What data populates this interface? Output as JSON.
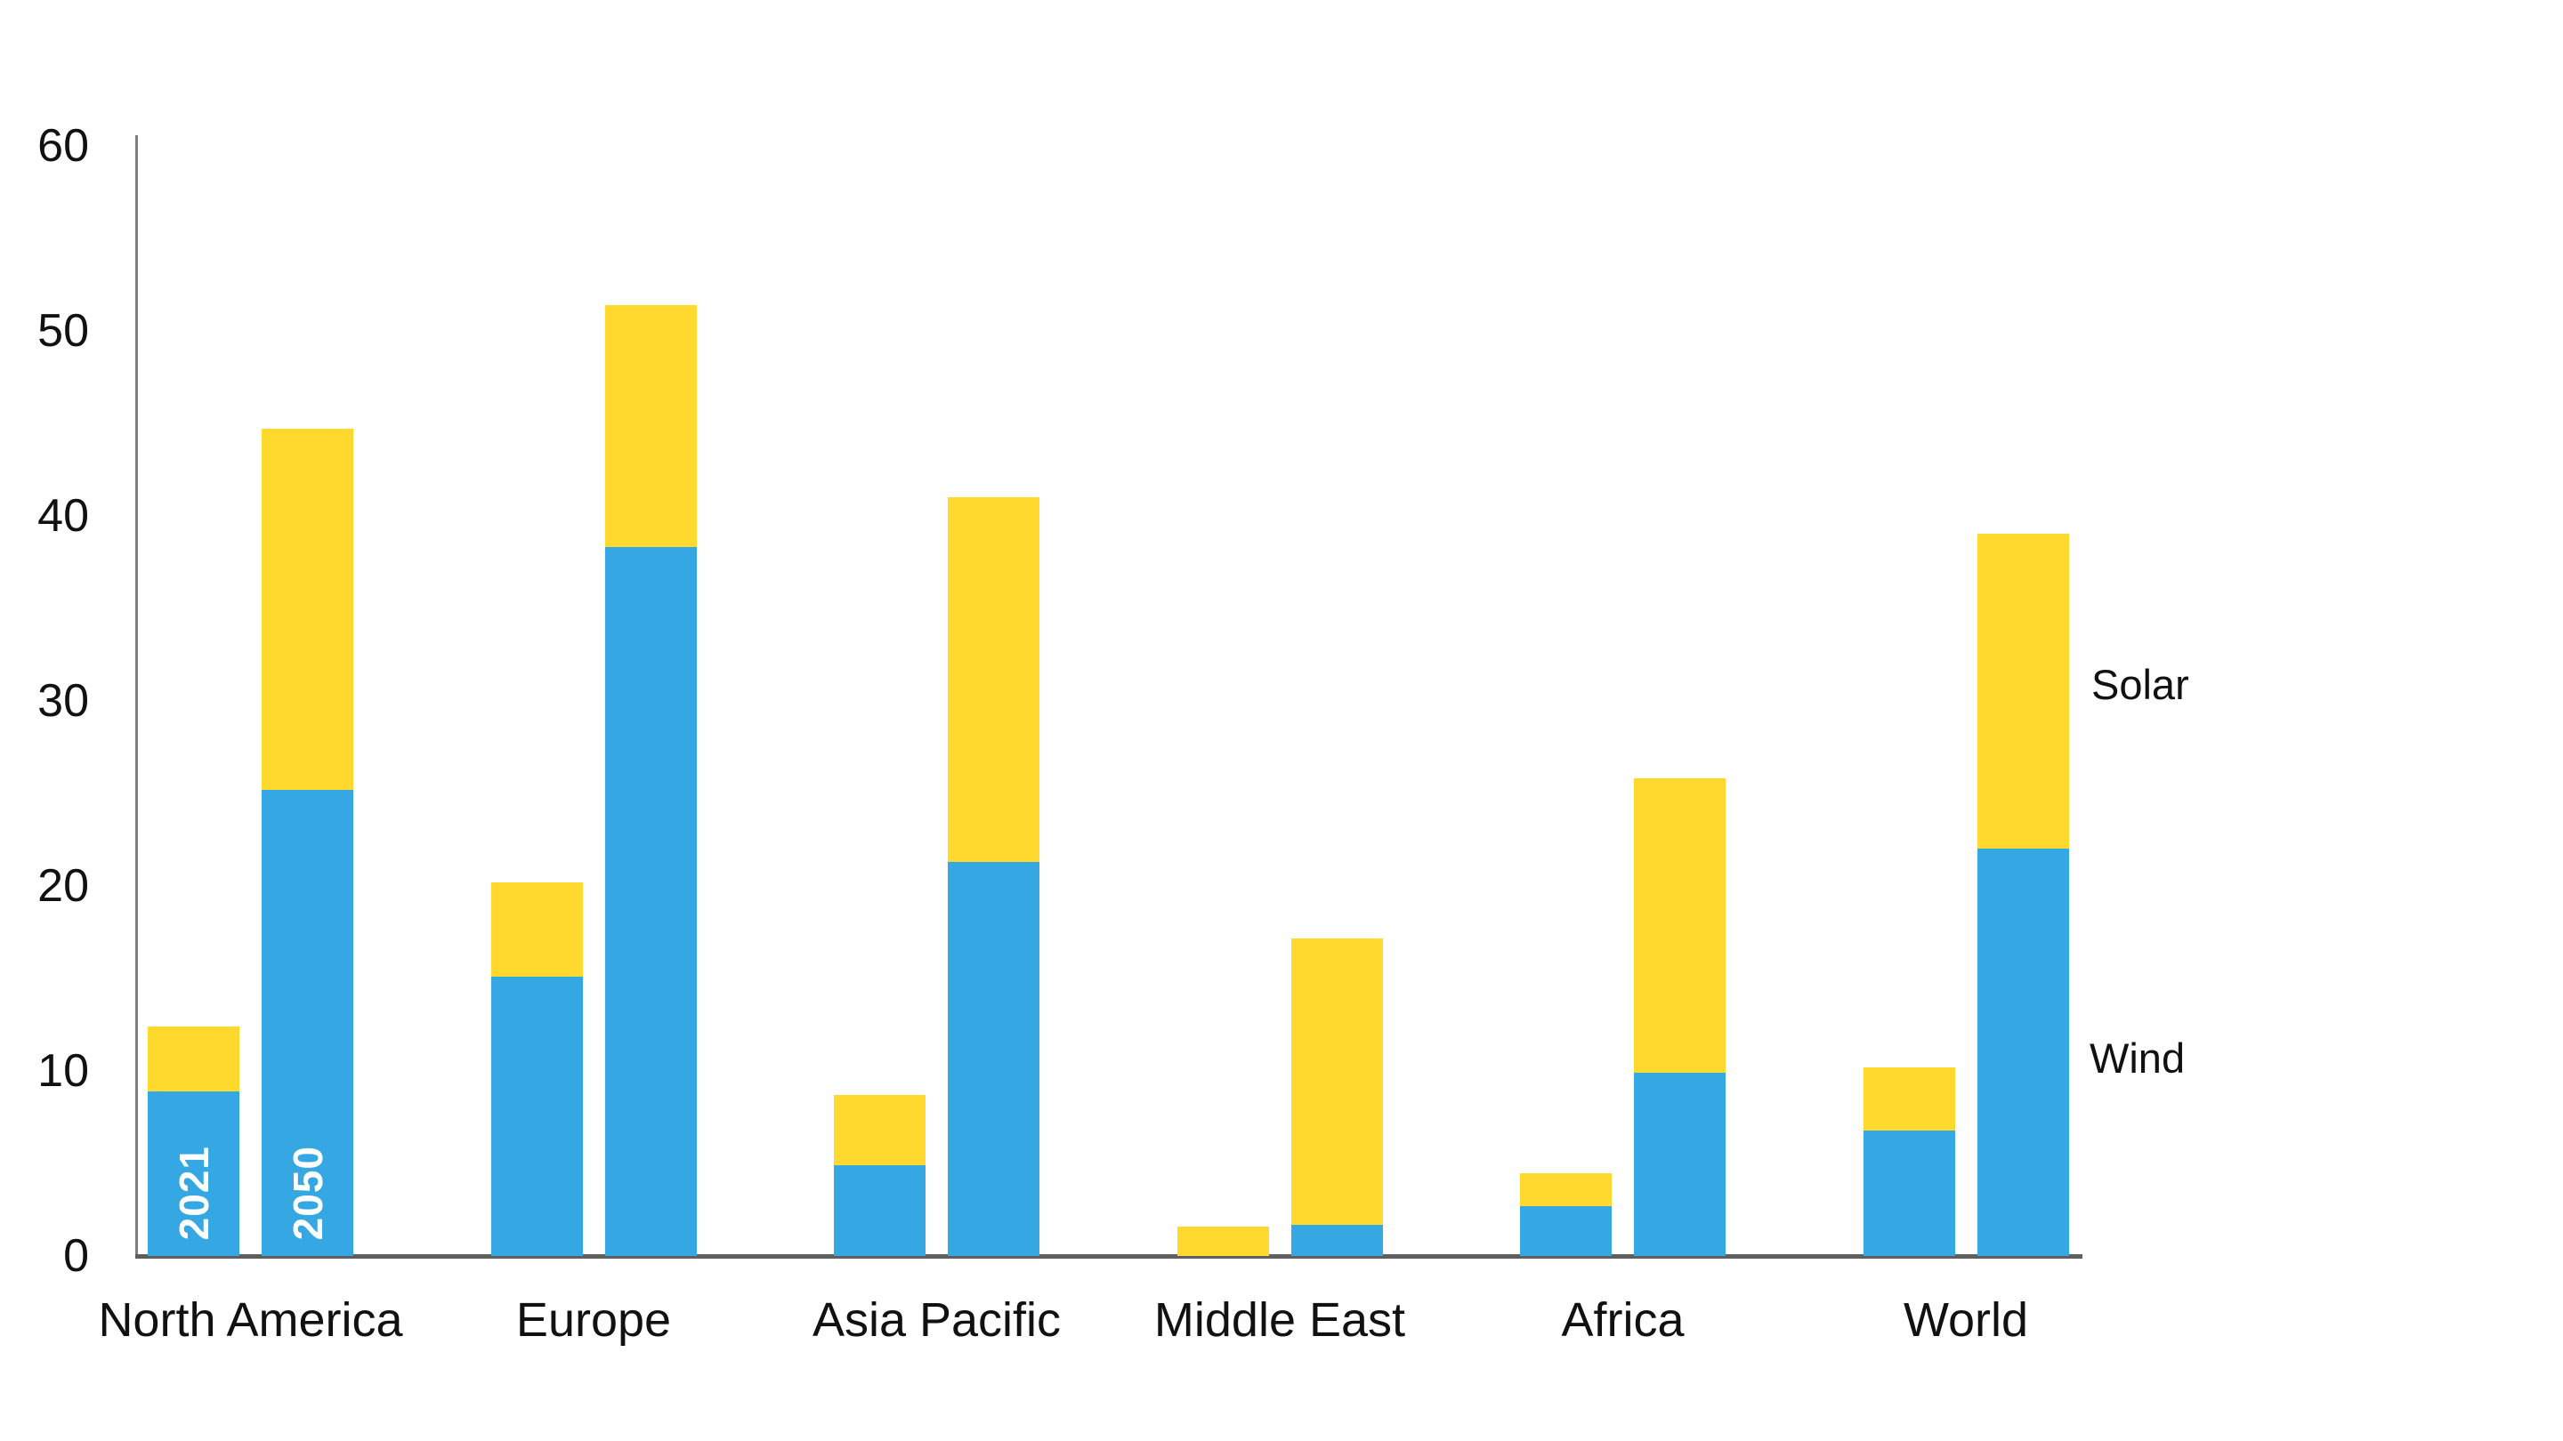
{
  "chart_data": {
    "type": "bar",
    "stacked": true,
    "y_axis": {
      "min": 0,
      "max": 60,
      "ticks": [
        0,
        10,
        20,
        30,
        40,
        50,
        60
      ]
    },
    "categories": [
      "North America",
      "Europe",
      "Asia Pacific",
      "Middle East",
      "Africa",
      "World"
    ],
    "years": [
      "2021",
      "2050"
    ],
    "legend": {
      "solar_label": "Solar",
      "wind_label": "Wind",
      "position": "right-of-last-bar"
    },
    "colors": {
      "wind": "#35A7E2",
      "solar": "#FFD92E",
      "axis": "#5f5f5f",
      "year_label_text": "#ffffff"
    },
    "groups": [
      {
        "label": "North America",
        "bars": [
          {
            "year": "2021",
            "wind": 8.9,
            "solar": 3.5
          },
          {
            "year": "2050",
            "wind": 25.2,
            "solar": 19.5
          }
        ]
      },
      {
        "label": "Europe",
        "bars": [
          {
            "year": "2021",
            "wind": 15.1,
            "solar": 5.1
          },
          {
            "year": "2050",
            "wind": 38.3,
            "solar": 13.1
          }
        ]
      },
      {
        "label": "Asia Pacific",
        "bars": [
          {
            "year": "2021",
            "wind": 4.9,
            "solar": 3.8
          },
          {
            "year": "2050",
            "wind": 21.3,
            "solar": 19.7
          }
        ]
      },
      {
        "label": "Middle East",
        "bars": [
          {
            "year": "2021",
            "wind": 0,
            "solar": 1.6
          },
          {
            "year": "2050",
            "wind": 1.7,
            "solar": 15.5
          }
        ]
      },
      {
        "label": "Africa",
        "bars": [
          {
            "year": "2021",
            "wind": 2.7,
            "solar": 1.8
          },
          {
            "year": "2050",
            "wind": 9.9,
            "solar": 15.9
          }
        ]
      },
      {
        "label": "World",
        "bars": [
          {
            "year": "2021",
            "wind": 6.8,
            "solar": 3.4
          },
          {
            "year": "2050",
            "wind": 22.0,
            "solar": 17.0
          }
        ]
      }
    ]
  }
}
